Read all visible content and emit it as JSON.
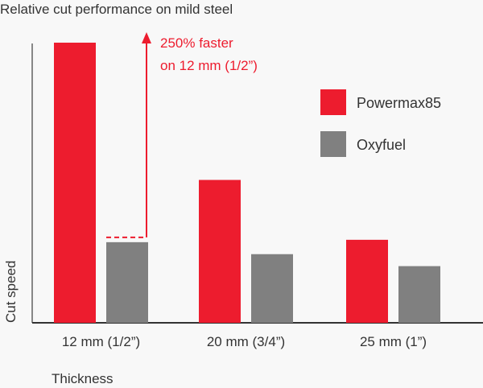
{
  "chart_data": {
    "type": "bar",
    "title": "Relative cut performance on mild steel",
    "xlabel": "Thickness",
    "ylabel": "Cut speed",
    "categories": [
      "12 mm (1/2”)",
      "20 mm (3/4”)",
      "25 mm (1”)"
    ],
    "series": [
      {
        "name": "Powermax85",
        "color": "#ed1c2e",
        "values": [
          3.5,
          1.78,
          1.03
        ]
      },
      {
        "name": "Oxyfuel",
        "color": "#808080",
        "values": [
          1.0,
          0.85,
          0.7
        ]
      }
    ],
    "ylim": [
      0,
      3.5
    ],
    "grid": false,
    "legend": "top-right",
    "annotation": {
      "line1": "250% faster",
      "line2": "on 12 mm (1/2”)",
      "color": "#ed1c2e"
    }
  }
}
